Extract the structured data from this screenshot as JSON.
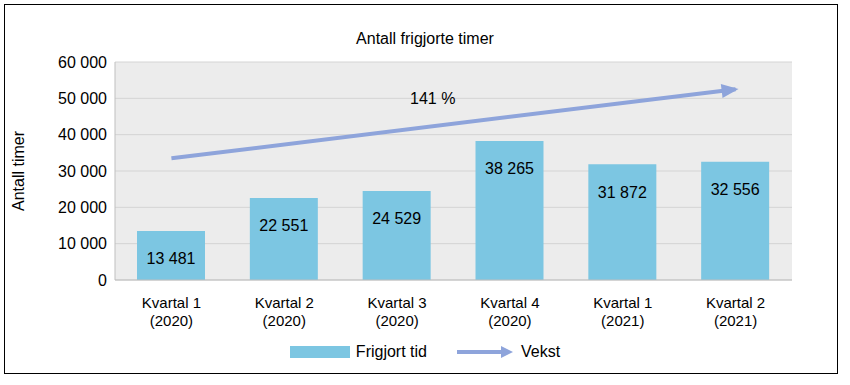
{
  "chart_data": {
    "type": "bar",
    "title": "Antall frigjorte timer",
    "y_label": "Antall timer",
    "categories": [
      "Kvartal 1 (2020)",
      "Kvartal 2 (2020)",
      "Kvartal 3 (2020)",
      "Kvartal 4 (2020)",
      "Kvartal 1 (2021)",
      "Kvartal 2 (2021)"
    ],
    "series": [
      {
        "name": "Frigjort tid",
        "type": "bar",
        "color": "#7cc6e2",
        "values": [
          13481,
          22551,
          24529,
          38265,
          31872,
          32556
        ],
        "value_labels": [
          "13 481",
          "22 551",
          "24 529",
          "38 265",
          "31 872",
          "32 556"
        ]
      },
      {
        "name": "Vekst",
        "type": "line",
        "color": "#8ea4db",
        "marker": "arrow",
        "values": [
          33500,
          null,
          null,
          null,
          null,
          52500
        ]
      }
    ],
    "annotations": [
      "141 %"
    ],
    "ylim": [
      0,
      60000
    ],
    "yticks": [
      0,
      {
        "value": 10000,
        "label": "10 000"
      },
      {
        "value": 20000,
        "label": "20 000"
      },
      {
        "value": 30000,
        "label": "30 000"
      },
      {
        "value": 40000,
        "label": "40 000"
      },
      {
        "value": 50000,
        "label": "50 000"
      },
      {
        "value": 60000,
        "label": "60 000"
      }
    ],
    "grid": true,
    "legend": "bottom",
    "data_labels": true
  }
}
